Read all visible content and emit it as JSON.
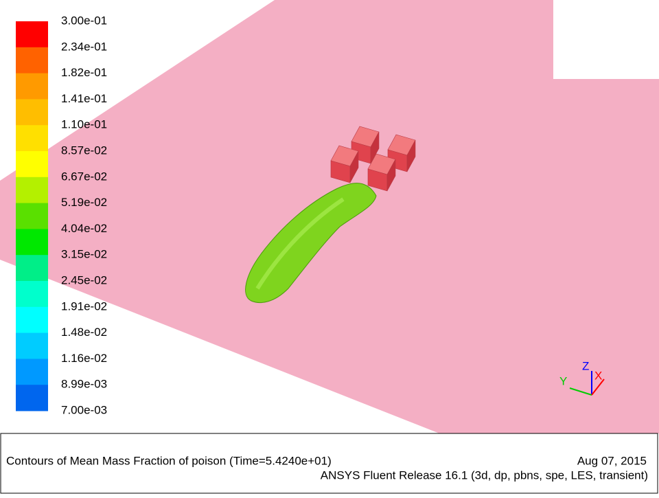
{
  "colorbar": {
    "labels": [
      "3.00e-01",
      "2.34e-01",
      "1.82e-01",
      "1.41e-01",
      "1.10e-01",
      "8.57e-02",
      "6.67e-02",
      "5.19e-02",
      "4.04e-02",
      "3.15e-02",
      "2.45e-02",
      "1.91e-02",
      "1.48e-02",
      "1.16e-02",
      "8.99e-03",
      "7.00e-03"
    ],
    "colors": [
      "#ff0000",
      "#ff6200",
      "#ff9a00",
      "#ffbe00",
      "#ffe000",
      "#ffff00",
      "#b4f000",
      "#5ae000",
      "#00e800",
      "#00ee88",
      "#00ffcc",
      "#00ffff",
      "#00ccff",
      "#0099ff",
      "#0066ee",
      "#0000ff"
    ]
  },
  "axes": {
    "x": "X",
    "y": "Y",
    "z": "Z"
  },
  "footer": {
    "title": "Contours of Mean Mass Fraction of poison  (Time=5.4240e+01)",
    "date": "Aug 07, 2015",
    "release": "ANSYS Fluent Release 16.1 (3d, dp, pbns, spe, LES, transient)"
  }
}
